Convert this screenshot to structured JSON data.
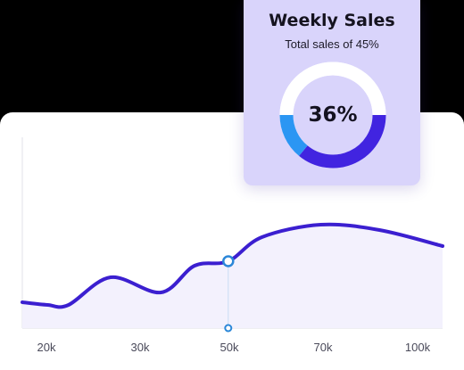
{
  "chart_data": [
    {
      "type": "area",
      "x_tick_labels": [
        "20k",
        "30k",
        "50k",
        "70k",
        "100k"
      ],
      "series": [
        {
          "points": [
            [
              0.0,
              29
            ],
            [
              0.06,
              26
            ],
            [
              0.11,
              26
            ],
            [
              0.21,
              57
            ],
            [
              0.33,
              40
            ],
            [
              0.41,
              70
            ],
            [
              0.49,
              75
            ],
            [
              0.57,
              102
            ],
            [
              0.71,
              116
            ],
            [
              0.85,
              110
            ],
            [
              1.0,
              92
            ]
          ],
          "color": "#3b1fd0"
        }
      ],
      "highlight": {
        "x": 0.49,
        "y": 75
      },
      "ylim": [
        0,
        128
      ],
      "grid": false
    },
    {
      "type": "pie",
      "title": "Weekly Sales",
      "subtitle": "Total sales of 45%",
      "center_label": "36%",
      "slices": [
        {
          "value": 36,
          "color": "#4124e0"
        },
        {
          "value": 14,
          "color": "#2b96f3"
        },
        {
          "value": 50,
          "color": "#ffffff"
        }
      ]
    }
  ],
  "colors": {
    "background": "#000000",
    "card": "#ffffff",
    "area_fill": "#f3f1fd",
    "popup": "#d9d4fb",
    "accent": "#3b1fd0"
  }
}
